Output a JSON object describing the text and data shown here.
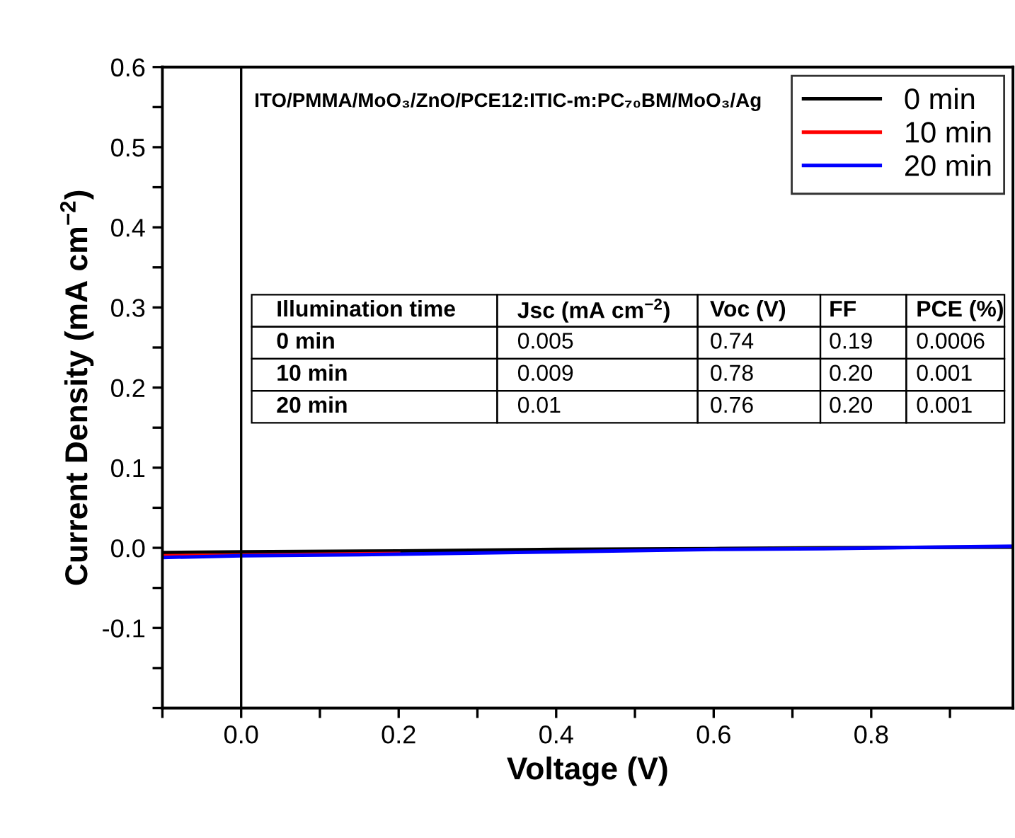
{
  "chart_data": {
    "type": "line",
    "xlabel": "Voltage (V)",
    "ylabel": "Current Density (mA cm$^{−2}$)",
    "x": [
      -0.1,
      0.0,
      0.2,
      0.4,
      0.6,
      0.74,
      0.98
    ],
    "series": [
      {
        "name": "0 min",
        "color": "#000000",
        "values": [
          -0.006,
          -0.005,
          -0.004,
          -0.002,
          -0.001,
          0.0,
          0.001
        ]
      },
      {
        "name": "10 min",
        "color": "#ff0000",
        "values": [
          -0.01,
          -0.009,
          -0.007,
          null,
          null,
          null,
          null
        ]
      },
      {
        "name": "20 min",
        "color": "#0000ff",
        "values": [
          -0.012,
          -0.01,
          -0.008,
          -0.005,
          -0.002,
          -0.001,
          0.002
        ]
      }
    ],
    "xlim": [
      -0.1,
      0.98
    ],
    "ylim": [
      -0.2,
      0.6
    ],
    "xticks": [
      {
        "value": -0.1,
        "label": null
      },
      {
        "value": 0,
        "label": "0.0"
      },
      {
        "value": 0.1,
        "label": null
      },
      0.2,
      {
        "value": 0.3,
        "label": null
      },
      0.4,
      {
        "value": 0.5,
        "label": null
      },
      0.6,
      {
        "value": 0.7,
        "label": null
      },
      0.8,
      {
        "value": 0.9,
        "label": null
      }
    ],
    "yticks": [
      {
        "value": -0.2,
        "label": null
      },
      {
        "value": -0.15,
        "label": null
      },
      -0.1,
      {
        "value": -0.05,
        "label": null
      },
      {
        "value": 0,
        "label": "0.0"
      },
      {
        "value": 0.05,
        "label": null
      },
      0.1,
      {
        "value": 0.15,
        "label": null
      },
      0.2,
      {
        "value": 0.25,
        "label": null
      },
      0.3,
      {
        "value": 0.35,
        "label": null
      },
      0.4,
      {
        "value": 0.45,
        "label": null
      },
      0.5,
      {
        "value": 0.55,
        "label": null
      },
      0.6
    ],
    "ref_lines": [
      {
        "axis": "x",
        "value": 0,
        "color": "#000000"
      }
    ],
    "annotations": [
      "ITO/PMMA/MoO₃/ZnO/PCE12:ITIC-m:PC₇₀BM/MoO₃/Ag",
      "Illumination time",
      "Jsc (mA cm$^{−2}$)",
      "Voc (V)",
      "FF",
      "PCE (%)",
      "0 min",
      "0.005",
      "0.74",
      "0.19",
      "0.0006",
      "10 min",
      "0.009",
      "0.78",
      "0.20",
      "0.001",
      "20 min",
      "0.01",
      "0.76",
      "0.20",
      "0.001"
    ],
    "grid": false,
    "legend": "top right",
    "line_style": "solid",
    "marker": "none"
  }
}
